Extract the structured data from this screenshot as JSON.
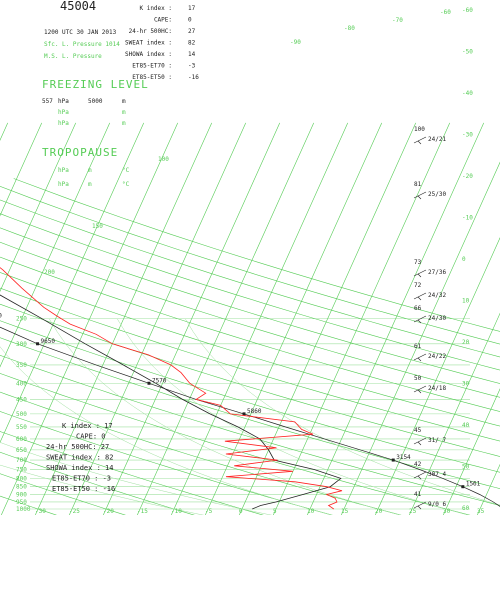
{
  "chart_data": {
    "type": "line",
    "station_id": "45004",
    "header_left": {
      "datetime": "1200 UTC 30 JAN 2013",
      "sfc_pressure_label": "Sfc. L. Pressure",
      "sfc_pressure_value": "1014",
      "msl_pressure_label": "M.S. L. Pressure"
    },
    "indices": [
      {
        "label": "K index :",
        "value": "17"
      },
      {
        "label": "CAPE:",
        "value": "0"
      },
      {
        "label": "24-hr 500HC:",
        "value": "27"
      },
      {
        "label": "SWEAT index :",
        "value": "82"
      },
      {
        "label": "SHOWA index :",
        "value": "14"
      },
      {
        "label": "ET85-ET70 :",
        "value": "-3"
      },
      {
        "label": "ET85-ET50 :",
        "value": "-16"
      }
    ],
    "indices_lower": [
      {
        "label": "K index : ",
        "value": "17"
      },
      {
        "label": "CAPE: ",
        "value": "0"
      },
      {
        "label": "24-hr 500HC: ",
        "value": "27"
      },
      {
        "label": "SWEAT index : ",
        "value": "82"
      },
      {
        "label": "SHOWA index : ",
        "value": "14"
      },
      {
        "label": "ET85-ET70 : ",
        "value": "-3"
      },
      {
        "label": "ET85-ET50 : ",
        "value": "-16"
      }
    ],
    "freezing_level": {
      "title": "FREEZING LEVEL",
      "rows": [
        {
          "p": "557",
          "pu": "hPa",
          "h": "5000",
          "hu": "m"
        },
        {
          "p": "",
          "pu": "hPa",
          "h": "",
          "hu": "m"
        },
        {
          "p": "",
          "pu": "hPa",
          "h": "",
          "hu": "m"
        }
      ]
    },
    "tropopause": {
      "title": "TROPOPAUSE",
      "rows": [
        {
          "p": "",
          "pu": "hPa",
          "h": "m",
          "hu": "°C"
        },
        {
          "p": "",
          "pu": "hPa",
          "h": "m",
          "hu": "°C"
        }
      ]
    },
    "pressure_ticks": [
      {
        "p": 250,
        "label": "250"
      },
      {
        "p": 300,
        "label": "300"
      },
      {
        "p": 350,
        "label": "350"
      },
      {
        "p": 400,
        "label": "400"
      },
      {
        "p": 450,
        "label": "450"
      },
      {
        "p": 500,
        "label": "500"
      },
      {
        "p": 550,
        "label": "550"
      },
      {
        "p": 600,
        "label": "600"
      },
      {
        "p": 650,
        "label": "650"
      },
      {
        "p": 700,
        "label": "700"
      },
      {
        "p": 750,
        "label": "750"
      },
      {
        "p": 800,
        "label": "800"
      },
      {
        "p": 850,
        "label": "850"
      },
      {
        "p": 900,
        "label": "900"
      },
      {
        "p": 950,
        "label": "950"
      },
      {
        "p": 1000,
        "label": "1000"
      }
    ],
    "x_ticks": [
      "-30",
      "-25",
      "-20",
      "-15",
      "-10",
      "-5",
      "0",
      "5",
      "10",
      "15",
      "20",
      "25",
      "30",
      "35",
      "40"
    ],
    "right_ticks": [
      "-60",
      "-50",
      "-40",
      "-30",
      "-20",
      "-10",
      "0",
      "10",
      "20",
      "30",
      "40",
      "50",
      "60"
    ],
    "top_isotherm_labels": [
      "-70",
      "-80",
      "-90",
      "-60"
    ],
    "upper_pressure_labels": [
      "100",
      "150",
      "200"
    ],
    "height_labels": [
      "16570",
      "14100",
      "12390",
      "12390",
      "10410",
      "9650",
      "7570",
      "5860",
      "3154",
      "1561",
      "106"
    ],
    "wind_levels": [
      "100",
      "81",
      "73",
      "72",
      "66",
      "61",
      "50",
      "45",
      "42",
      "41"
    ],
    "wind_values": [
      "24/21",
      "25/30",
      "27/36",
      "24/32",
      "24/30",
      "24/22",
      "24/18",
      "31/ 7",
      "307 4",
      "9/0 6"
    ],
    "temperature_profile": [
      [
        1000,
        13.5
      ],
      [
        975,
        12.5
      ],
      [
        950,
        13.5
      ],
      [
        925,
        13.0
      ],
      [
        900,
        11.5
      ],
      [
        875,
        13.5
      ],
      [
        850,
        11.0
      ],
      [
        820,
        6.0
      ],
      [
        790,
        -4.5
      ],
      [
        760,
        5.0
      ],
      [
        730,
        -4.0
      ],
      [
        700,
        2.0
      ],
      [
        670,
        -6.0
      ],
      [
        640,
        1.0
      ],
      [
        610,
        -7.0
      ],
      [
        580,
        5.5
      ],
      [
        560,
        3.5
      ],
      [
        530,
        2.0
      ],
      [
        500,
        -8.0
      ],
      [
        470,
        -10.0
      ],
      [
        450,
        -14.0
      ],
      [
        430,
        -13.0
      ],
      [
        400,
        -16.0
      ],
      [
        370,
        -18.0
      ],
      [
        350,
        -20.0
      ],
      [
        325,
        -24.0
      ],
      [
        300,
        -30.0
      ],
      [
        280,
        -33.0
      ],
      [
        260,
        -37.5
      ],
      [
        245,
        -40.0
      ],
      [
        230,
        -42.5
      ],
      [
        200,
        -47.0
      ],
      [
        175,
        -51.0
      ],
      [
        150,
        -56.5
      ],
      [
        130,
        -58.5
      ],
      [
        110,
        -62.5
      ],
      [
        100,
        -63.5
      ],
      [
        85,
        -65.5
      ],
      [
        75,
        -64.5
      ]
    ],
    "dewpoint_profile": [
      [
        1000,
        1.5
      ],
      [
        975,
        2.5
      ],
      [
        950,
        4.5
      ],
      [
        900,
        8.0
      ],
      [
        850,
        11.5
      ],
      [
        800,
        12.5
      ],
      [
        750,
        8.0
      ],
      [
        700,
        1.5
      ],
      [
        650,
        0.0
      ],
      [
        600,
        -2.0
      ],
      [
        550,
        -6.0
      ],
      [
        500,
        -11.0
      ],
      [
        450,
        -16.0
      ],
      [
        400,
        -21.0
      ],
      [
        350,
        -27.0
      ],
      [
        300,
        -34.0
      ],
      [
        250,
        -42.0
      ],
      [
        200,
        -52.0
      ],
      [
        150,
        -60.0
      ],
      [
        120,
        -64.0
      ],
      [
        100,
        -66.5
      ],
      [
        90,
        -67.5
      ],
      [
        75,
        -69.0
      ]
    ],
    "parcel_path": [
      [
        1000,
        38.5
      ],
      [
        950,
        36.5
      ],
      [
        900,
        34.0
      ],
      [
        850,
        31.0
      ],
      [
        800,
        27.5
      ],
      [
        750,
        23.5
      ],
      [
        700,
        19.0
      ],
      [
        650,
        13.5
      ],
      [
        600,
        7.5
      ],
      [
        550,
        1.0
      ],
      [
        500,
        -6.0
      ],
      [
        450,
        -14.0
      ],
      [
        400,
        -22.0
      ],
      [
        350,
        -31.0
      ],
      [
        300,
        -41.0
      ],
      [
        250,
        -51.0
      ],
      [
        200,
        -61.0
      ],
      [
        175,
        -62.0
      ],
      [
        150,
        -63.0
      ],
      [
        125,
        -64.0
      ],
      [
        100,
        -66.0
      ],
      [
        80,
        -67.5
      ]
    ],
    "xlim": [
      -30,
      40
    ],
    "ylim": [
      1050,
      50
    ],
    "grid": true
  }
}
